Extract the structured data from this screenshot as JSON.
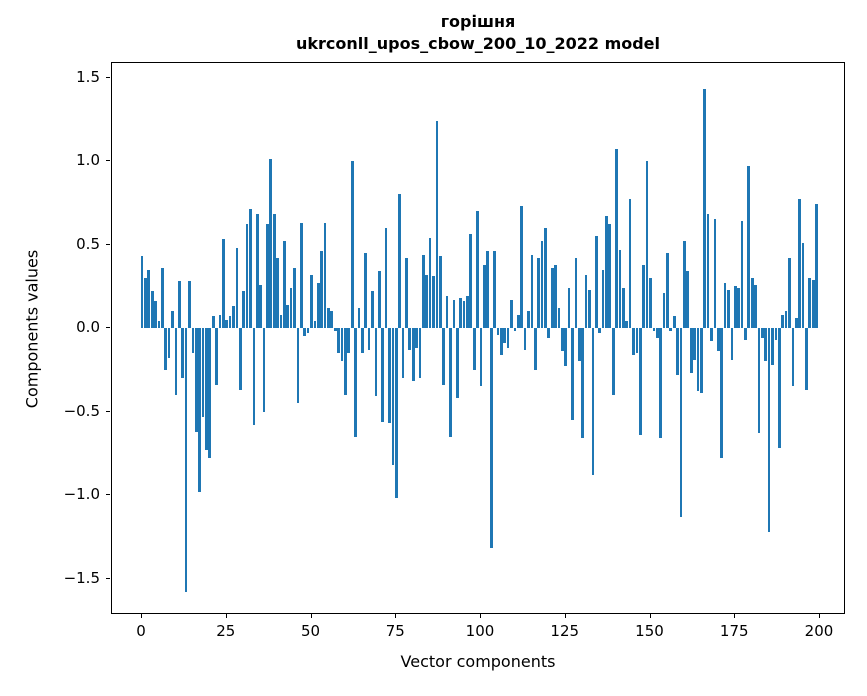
{
  "chart_data": {
    "type": "bar",
    "title_line1": "горішня",
    "title_line2": "ukrconll_upos_cbow_200_10_2022 model",
    "xlabel": "Vector components",
    "ylabel": "Components values",
    "bar_color": "#1f77b4",
    "background_color": "#ffffff",
    "grid": false,
    "legend": false,
    "x_is_index": true,
    "n_bars": 200,
    "xlim": [
      -11,
      211
    ],
    "ylim": [
      -1.72,
      1.59
    ],
    "x_ticks": {
      "values": [
        0,
        25,
        50,
        75,
        100,
        125,
        150,
        175,
        200
      ],
      "labels": [
        "0",
        "25",
        "50",
        "75",
        "100",
        "125",
        "150",
        "175",
        "200"
      ]
    },
    "y_ticks": {
      "values": [
        1.5,
        1.0,
        0.5,
        0.0,
        -0.5,
        -1.0,
        -1.5
      ],
      "labels": [
        "1.5",
        "1.0",
        "0.5",
        "0.0",
        "−0.5",
        "−1.0",
        "−1.5"
      ]
    },
    "values": [
      0.43,
      0.3,
      0.35,
      0.22,
      0.16,
      0.04,
      0.36,
      -0.25,
      -0.18,
      0.1,
      -0.4,
      0.28,
      -0.3,
      -1.58,
      0.28,
      -0.15,
      -0.62,
      -0.98,
      -0.53,
      -0.73,
      -0.78,
      0.07,
      -0.34,
      0.08,
      0.53,
      0.05,
      0.07,
      0.13,
      0.48,
      -0.37,
      0.22,
      0.62,
      0.71,
      -0.58,
      0.68,
      0.26,
      -0.5,
      0.62,
      1.01,
      0.68,
      0.42,
      0.08,
      0.52,
      0.14,
      0.24,
      0.36,
      -0.45,
      0.63,
      -0.05,
      -0.03,
      0.32,
      0.04,
      0.27,
      0.46,
      0.63,
      0.12,
      0.1,
      -0.02,
      -0.15,
      -0.2,
      -0.4,
      -0.15,
      1.0,
      -0.65,
      0.12,
      -0.15,
      0.45,
      -0.13,
      0.22,
      -0.41,
      0.34,
      -0.56,
      0.6,
      -0.57,
      -0.82,
      -1.02,
      0.8,
      -0.3,
      0.42,
      -0.13,
      -0.32,
      -0.12,
      -0.3,
      0.44,
      0.32,
      0.54,
      0.31,
      1.24,
      0.43,
      -0.34,
      0.19,
      -0.65,
      0.17,
      -0.42,
      0.18,
      0.16,
      0.19,
      0.56,
      -0.25,
      0.7,
      -0.35,
      0.38,
      0.46,
      -1.32,
      0.46,
      -0.04,
      -0.16,
      -0.09,
      -0.12,
      0.17,
      -0.02,
      0.08,
      0.73,
      -0.13,
      0.1,
      0.44,
      -0.25,
      0.42,
      0.52,
      0.6,
      -0.06,
      0.36,
      0.38,
      0.12,
      -0.14,
      -0.23,
      0.24,
      -0.55,
      0.42,
      -0.2,
      -0.66,
      0.32,
      0.23,
      -0.88,
      0.55,
      -0.03,
      0.35,
      0.67,
      0.62,
      -0.4,
      1.07,
      0.47,
      0.24,
      0.04,
      0.77,
      -0.16,
      -0.15,
      -0.64,
      0.38,
      1.0,
      0.3,
      -0.02,
      -0.06,
      -0.66,
      0.21,
      0.45,
      -0.02,
      0.07,
      -0.28,
      -1.13,
      0.52,
      0.34,
      -0.27,
      -0.19,
      -0.38,
      -0.39,
      1.43,
      0.68,
      -0.08,
      0.65,
      -0.14,
      -0.78,
      0.27,
      0.23,
      -0.19,
      0.25,
      0.24,
      0.64,
      -0.07,
      0.97,
      0.3,
      0.26,
      -0.63,
      -0.06,
      -0.2,
      -1.22,
      -0.22,
      -0.07,
      -0.72,
      0.08,
      0.1,
      0.42,
      -0.35,
      0.06,
      0.77,
      0.51,
      -0.37,
      0.3,
      0.29,
      0.74
    ]
  }
}
